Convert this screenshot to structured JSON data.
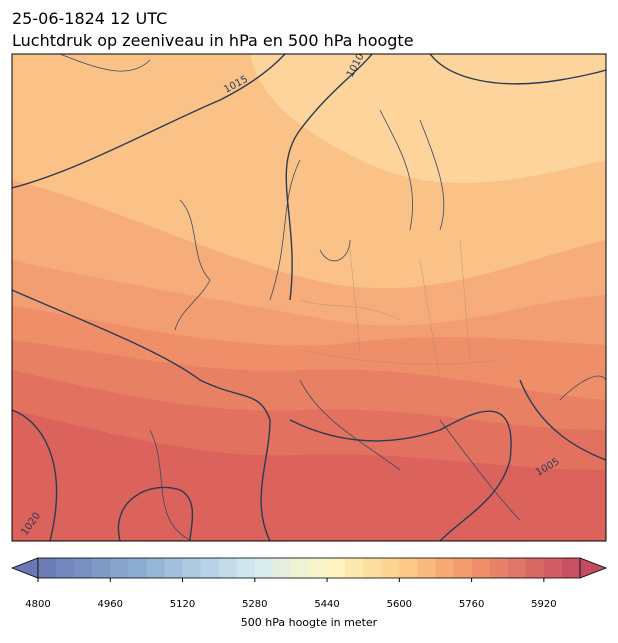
{
  "header": {
    "title": "25-06-1824 12 UTC",
    "subtitle": "Luchtdruk op zeeniveau in hPa en 500 hPa hoogte"
  },
  "contour_labels": [
    "1015",
    "1010",
    "1005",
    "1020"
  ],
  "colorbar": {
    "lim": [
      4800,
      6000
    ],
    "step": 40,
    "ticks": [
      4800,
      4960,
      5120,
      5280,
      5440,
      5600,
      5760,
      5920
    ],
    "label": "500 hPa hoogte in meter"
  }
}
